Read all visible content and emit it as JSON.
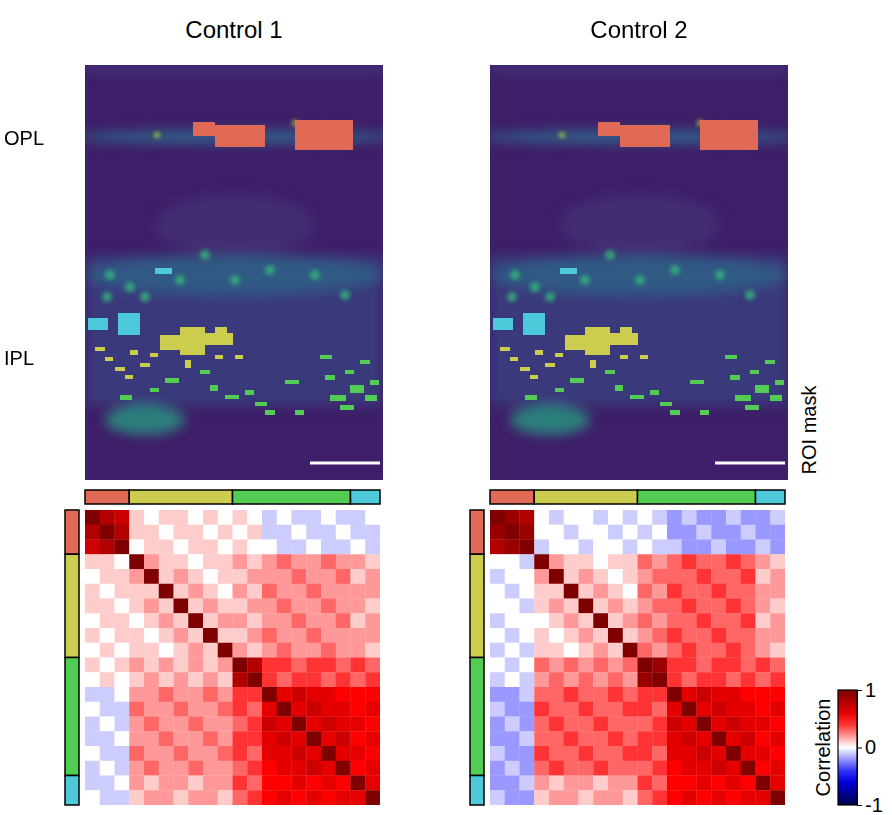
{
  "chart_data": [
    {
      "type": "heatmap",
      "title": "Control 1",
      "layer_labels": [
        "OPL",
        "IPL"
      ],
      "tick_labels": false,
      "groups": [
        {
          "color": "#e06a55",
          "size": 3
        },
        {
          "color": "#cccc4f",
          "size": 7
        },
        {
          "color": "#52cc52",
          "size": 8
        },
        {
          "color": "#4dc9d9",
          "size": 2
        }
      ],
      "cells": [
        [
          1,
          0.8,
          0.7,
          0.1,
          0,
          0.1,
          0.1,
          0,
          0.1,
          0,
          0.1,
          0,
          -0.1,
          0,
          -0.1,
          -0.1,
          0,
          -0.1,
          -0.1,
          0
        ],
        [
          0.8,
          1,
          0.8,
          0.1,
          0.1,
          0,
          0.1,
          0.1,
          0,
          0.1,
          0,
          0.1,
          -0.1,
          -0.1,
          0,
          -0.1,
          -0.1,
          0,
          -0.1,
          -0.1
        ],
        [
          0.7,
          0.8,
          1,
          0,
          0.1,
          0.1,
          0,
          0.1,
          0.1,
          0,
          0.1,
          0,
          0,
          -0.1,
          -0.1,
          0,
          -0.1,
          -0.1,
          0,
          -0.1
        ],
        [
          0.1,
          0.1,
          0,
          1,
          0.2,
          0.1,
          0.1,
          0,
          0.1,
          0.1,
          0.2,
          0.1,
          0.2,
          0.3,
          0.2,
          0.2,
          0.3,
          0.2,
          0.2,
          0.1
        ],
        [
          0,
          0.1,
          0.1,
          0.2,
          1,
          0.1,
          0.2,
          0.1,
          0,
          0.1,
          0.1,
          0.2,
          0.2,
          0.2,
          0.3,
          0.2,
          0.2,
          0.3,
          0.1,
          0.2
        ],
        [
          0.1,
          0,
          0.1,
          0.1,
          0.1,
          1,
          0.1,
          0.2,
          0.1,
          0,
          0.2,
          0.1,
          0.3,
          0.2,
          0.2,
          0.3,
          0.2,
          0.2,
          0.2,
          0.2
        ],
        [
          0.1,
          0.1,
          0,
          0.1,
          0.2,
          0.1,
          1,
          0.1,
          0.2,
          0.1,
          0.1,
          0.2,
          0.2,
          0.3,
          0.2,
          0.2,
          0.3,
          0.2,
          0.2,
          0.1
        ],
        [
          0,
          0.1,
          0.1,
          0,
          0.1,
          0.2,
          0.1,
          1,
          0.1,
          0.2,
          0.2,
          0.1,
          0.2,
          0.2,
          0.3,
          0.2,
          0.2,
          0.3,
          0.1,
          0.2
        ],
        [
          0.1,
          0,
          0.1,
          0.1,
          0,
          0.1,
          0.2,
          0.1,
          1,
          0.1,
          0.1,
          0.2,
          0.3,
          0.2,
          0.2,
          0.3,
          0.2,
          0.2,
          0.2,
          0.2
        ],
        [
          0,
          0.1,
          0,
          0.1,
          0.1,
          0,
          0.1,
          0.2,
          0.1,
          1,
          0.2,
          0.1,
          0.2,
          0.3,
          0.2,
          0.2,
          0.3,
          0.2,
          0.2,
          0.1
        ],
        [
          0.1,
          0,
          0.1,
          0.2,
          0.1,
          0.2,
          0.1,
          0.2,
          0.1,
          0.2,
          1,
          0.8,
          0.4,
          0.4,
          0.3,
          0.4,
          0.4,
          0.3,
          0.4,
          0.3
        ],
        [
          0,
          0.1,
          0,
          0.1,
          0.2,
          0.1,
          0.2,
          0.1,
          0.2,
          0.1,
          0.8,
          1,
          0.4,
          0.3,
          0.4,
          0.4,
          0.3,
          0.4,
          0.3,
          0.4
        ],
        [
          -0.1,
          -0.1,
          0,
          0.2,
          0.2,
          0.3,
          0.2,
          0.2,
          0.3,
          0.2,
          0.4,
          0.4,
          1,
          0.6,
          0.7,
          0.6,
          0.6,
          0.5,
          0.5,
          0.5
        ],
        [
          0,
          -0.1,
          -0.1,
          0.3,
          0.2,
          0.2,
          0.3,
          0.2,
          0.2,
          0.3,
          0.4,
          0.3,
          0.6,
          1,
          0.6,
          0.7,
          0.6,
          0.6,
          0.5,
          0.6
        ],
        [
          -0.1,
          0,
          -0.1,
          0.2,
          0.3,
          0.2,
          0.2,
          0.3,
          0.2,
          0.2,
          0.3,
          0.4,
          0.7,
          0.6,
          1,
          0.6,
          0.7,
          0.6,
          0.6,
          0.5
        ],
        [
          -0.1,
          -0.1,
          0,
          0.2,
          0.2,
          0.3,
          0.2,
          0.2,
          0.3,
          0.2,
          0.4,
          0.4,
          0.6,
          0.7,
          0.6,
          1,
          0.6,
          0.7,
          0.5,
          0.6
        ],
        [
          0,
          -0.1,
          -0.1,
          0.3,
          0.2,
          0.2,
          0.3,
          0.2,
          0.2,
          0.3,
          0.4,
          0.3,
          0.6,
          0.6,
          0.7,
          0.6,
          1,
          0.6,
          0.6,
          0.5
        ],
        [
          -0.1,
          0,
          -0.1,
          0.2,
          0.3,
          0.2,
          0.2,
          0.3,
          0.2,
          0.2,
          0.3,
          0.4,
          0.5,
          0.6,
          0.6,
          0.7,
          0.6,
          1,
          0.5,
          0.6
        ],
        [
          -0.1,
          -0.1,
          0,
          0.2,
          0.1,
          0.2,
          0.2,
          0.1,
          0.2,
          0.2,
          0.4,
          0.3,
          0.5,
          0.5,
          0.6,
          0.5,
          0.6,
          0.5,
          1,
          0.6
        ],
        [
          0,
          -0.1,
          -0.1,
          0.1,
          0.2,
          0.2,
          0.1,
          0.2,
          0.2,
          0.1,
          0.3,
          0.4,
          0.5,
          0.6,
          0.5,
          0.6,
          0.5,
          0.6,
          0.6,
          1
        ]
      ]
    },
    {
      "type": "heatmap",
      "title": "Control 2",
      "image_label": "ROI mask",
      "tick_labels": false,
      "groups": [
        {
          "color": "#e06a55",
          "size": 3
        },
        {
          "color": "#cccc4f",
          "size": 7
        },
        {
          "color": "#52cc52",
          "size": 8
        },
        {
          "color": "#4dc9d9",
          "size": 2
        }
      ],
      "cells": [
        [
          1,
          0.9,
          0.8,
          0,
          -0.1,
          0,
          0,
          -0.1,
          0,
          -0.1,
          0,
          -0.1,
          -0.2,
          -0.1,
          -0.2,
          -0.2,
          -0.1,
          -0.2,
          -0.2,
          -0.1
        ],
        [
          0.9,
          1,
          0.9,
          0,
          0,
          -0.1,
          0,
          0,
          -0.1,
          0,
          -0.1,
          0,
          -0.2,
          -0.2,
          -0.1,
          -0.2,
          -0.2,
          -0.1,
          -0.2,
          -0.2
        ],
        [
          0.8,
          0.9,
          1,
          -0.1,
          0,
          0,
          -0.1,
          0,
          0,
          -0.1,
          0,
          -0.1,
          -0.1,
          -0.2,
          -0.2,
          -0.1,
          -0.2,
          -0.2,
          -0.1,
          -0.2
        ],
        [
          0,
          0,
          -0.1,
          1,
          0.2,
          0.1,
          0.1,
          0,
          0.1,
          0.1,
          0.3,
          0.2,
          0.3,
          0.4,
          0.3,
          0.3,
          0.4,
          0.3,
          0.2,
          0.1
        ],
        [
          -0.1,
          0,
          0,
          0.2,
          1,
          0.1,
          0.2,
          0.1,
          0,
          0.1,
          0.2,
          0.3,
          0.3,
          0.3,
          0.4,
          0.3,
          0.3,
          0.4,
          0.1,
          0.2
        ],
        [
          0,
          -0.1,
          0,
          0.1,
          0.1,
          1,
          0.1,
          0.2,
          0.1,
          0,
          0.3,
          0.2,
          0.4,
          0.3,
          0.3,
          0.4,
          0.3,
          0.3,
          0.2,
          0.2
        ],
        [
          0,
          0,
          -0.1,
          0.1,
          0.2,
          0.1,
          1,
          0.1,
          0.2,
          0.1,
          0.2,
          0.3,
          0.3,
          0.4,
          0.3,
          0.3,
          0.4,
          0.3,
          0.2,
          0.1
        ],
        [
          -0.1,
          0,
          0,
          0,
          0.1,
          0.2,
          0.1,
          1,
          0.1,
          0.2,
          0.3,
          0.2,
          0.3,
          0.3,
          0.4,
          0.3,
          0.3,
          0.4,
          0.1,
          0.2
        ],
        [
          0,
          -0.1,
          0,
          0.1,
          0,
          0.1,
          0.2,
          0.1,
          1,
          0.1,
          0.2,
          0.3,
          0.4,
          0.3,
          0.3,
          0.4,
          0.3,
          0.3,
          0.2,
          0.2
        ],
        [
          -0.1,
          0,
          -0.1,
          0.1,
          0.1,
          0,
          0.1,
          0.2,
          0.1,
          1,
          0.3,
          0.2,
          0.3,
          0.4,
          0.3,
          0.3,
          0.4,
          0.3,
          0.2,
          0.1
        ],
        [
          0,
          -0.1,
          0,
          0.3,
          0.2,
          0.3,
          0.2,
          0.3,
          0.2,
          0.3,
          1,
          0.9,
          0.4,
          0.4,
          0.3,
          0.4,
          0.4,
          0.3,
          0.4,
          0.3
        ],
        [
          -0.1,
          0,
          -0.1,
          0.2,
          0.3,
          0.2,
          0.3,
          0.2,
          0.3,
          0.2,
          0.9,
          1,
          0.4,
          0.3,
          0.4,
          0.4,
          0.3,
          0.4,
          0.3,
          0.4
        ],
        [
          -0.2,
          -0.2,
          -0.1,
          0.3,
          0.3,
          0.4,
          0.3,
          0.3,
          0.4,
          0.3,
          0.4,
          0.4,
          1,
          0.6,
          0.7,
          0.6,
          0.6,
          0.5,
          0.5,
          0.5
        ],
        [
          -0.1,
          -0.2,
          -0.2,
          0.4,
          0.3,
          0.3,
          0.4,
          0.3,
          0.3,
          0.4,
          0.4,
          0.3,
          0.6,
          1,
          0.6,
          0.7,
          0.6,
          0.6,
          0.5,
          0.6
        ],
        [
          -0.2,
          -0.1,
          -0.2,
          0.3,
          0.4,
          0.3,
          0.3,
          0.4,
          0.3,
          0.3,
          0.3,
          0.4,
          0.7,
          0.6,
          1,
          0.6,
          0.7,
          0.6,
          0.6,
          0.5
        ],
        [
          -0.2,
          -0.2,
          -0.1,
          0.3,
          0.3,
          0.4,
          0.3,
          0.3,
          0.4,
          0.3,
          0.4,
          0.4,
          0.6,
          0.7,
          0.6,
          1,
          0.6,
          0.7,
          0.5,
          0.6
        ],
        [
          -0.1,
          -0.2,
          -0.2,
          0.4,
          0.3,
          0.3,
          0.4,
          0.3,
          0.3,
          0.4,
          0.4,
          0.3,
          0.6,
          0.6,
          0.7,
          0.6,
          1,
          0.6,
          0.6,
          0.5
        ],
        [
          -0.2,
          -0.1,
          -0.2,
          0.3,
          0.4,
          0.3,
          0.3,
          0.4,
          0.3,
          0.3,
          0.3,
          0.4,
          0.5,
          0.6,
          0.6,
          0.7,
          0.6,
          1,
          0.5,
          0.6
        ],
        [
          -0.2,
          -0.2,
          -0.1,
          0.2,
          0.1,
          0.2,
          0.2,
          0.1,
          0.2,
          0.2,
          0.4,
          0.3,
          0.5,
          0.5,
          0.6,
          0.5,
          0.6,
          0.5,
          1,
          0.6
        ],
        [
          -0.1,
          -0.2,
          -0.2,
          0.1,
          0.2,
          0.2,
          0.1,
          0.2,
          0.2,
          0.1,
          0.3,
          0.4,
          0.5,
          0.6,
          0.5,
          0.6,
          0.5,
          0.6,
          0.6,
          1
        ]
      ],
      "colorbar": {
        "label": "Correlation",
        "range": [
          -1,
          1
        ],
        "ticks": [
          -1,
          0,
          1
        ]
      }
    }
  ]
}
